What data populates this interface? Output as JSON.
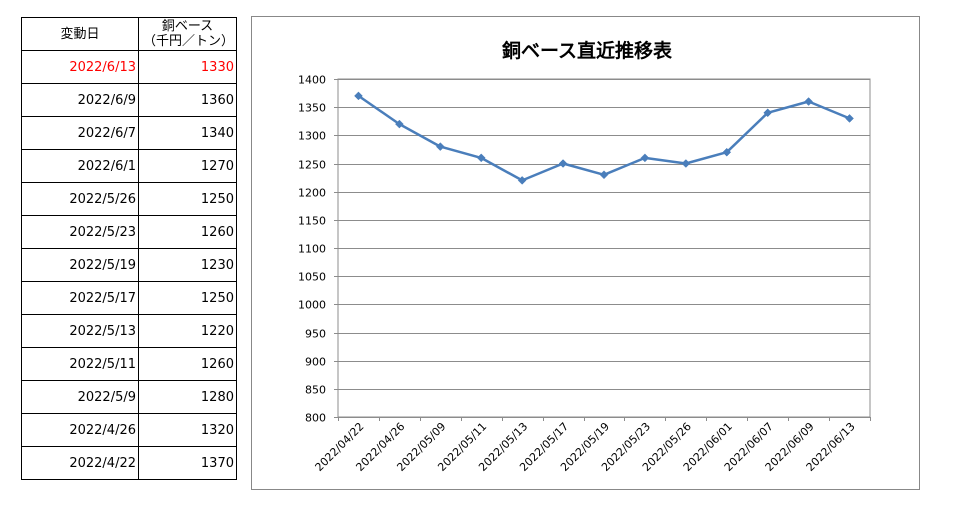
{
  "table": {
    "headers": {
      "date": "変動日",
      "price_line1": "銅ベース",
      "price_line2": "（千円／トン）"
    },
    "rows": [
      {
        "date": "2022/6/13",
        "price": "1330"
      },
      {
        "date": "2022/6/9",
        "price": "1360"
      },
      {
        "date": "2022/6/7",
        "price": "1340"
      },
      {
        "date": "2022/6/1",
        "price": "1270"
      },
      {
        "date": "2022/5/26",
        "price": "1250"
      },
      {
        "date": "2022/5/23",
        "price": "1260"
      },
      {
        "date": "2022/5/19",
        "price": "1230"
      },
      {
        "date": "2022/5/17",
        "price": "1250"
      },
      {
        "date": "2022/5/13",
        "price": "1220"
      },
      {
        "date": "2022/5/11",
        "price": "1260"
      },
      {
        "date": "2022/5/9",
        "price": "1280"
      },
      {
        "date": "2022/4/26",
        "price": "1320"
      },
      {
        "date": "2022/4/22",
        "price": "1370"
      }
    ],
    "latest_color": "#ff0000"
  },
  "chart_data": {
    "type": "line",
    "title": "銅ベース直近推移表",
    "xlabel": "",
    "ylabel": "",
    "categories": [
      "2022/04/22",
      "2022/04/26",
      "2022/05/09",
      "2022/05/11",
      "2022/05/13",
      "2022/05/17",
      "2022/05/19",
      "2022/05/23",
      "2022/05/26",
      "2022/06/01",
      "2022/06/07",
      "2022/06/09",
      "2022/06/13"
    ],
    "series": [
      {
        "values": [
          1370,
          1320,
          1280,
          1260,
          1220,
          1250,
          1230,
          1260,
          1250,
          1270,
          1340,
          1360,
          1330
        ],
        "color": "#4a7ebb"
      }
    ],
    "ylim": [
      800,
      1400
    ],
    "yticks": [
      800,
      850,
      900,
      950,
      1000,
      1050,
      1100,
      1150,
      1200,
      1250,
      1300,
      1350,
      1400
    ],
    "grid": true,
    "legend": "none",
    "marker": "diamond"
  }
}
